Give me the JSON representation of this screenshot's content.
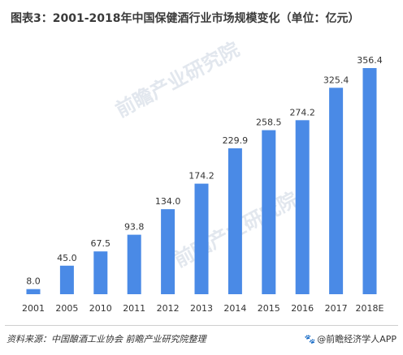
{
  "title": "图表3：2001-2018年中国保健酒行业市场规模变化（单位：亿元）",
  "chart_data": {
    "type": "bar",
    "categories": [
      "2001",
      "2005",
      "2010",
      "2011",
      "2012",
      "2013",
      "2014",
      "2015",
      "2016",
      "2017",
      "2018E"
    ],
    "values": [
      8.0,
      45.0,
      67.5,
      93.8,
      134.0,
      174.2,
      229.9,
      258.5,
      274.2,
      325.4,
      356.4
    ],
    "value_labels": [
      "8.0",
      "45.0",
      "67.5",
      "93.8",
      "134.0",
      "174.2",
      "229.9",
      "258.5",
      "274.2",
      "325.4",
      "356.4"
    ],
    "ylim": [
      0,
      356.4
    ],
    "bar_color": "#4a8ae6",
    "grid": false,
    "legend": "none"
  },
  "watermark": {
    "text": "前瞻产业研究院",
    "color": "#e2e7ee"
  },
  "footer": {
    "source": "资料来源：中国酿酒工业协会 前瞻产业研究院整理",
    "brand_icon": "paw-icon",
    "brand": "@前瞻经济学人APP"
  }
}
